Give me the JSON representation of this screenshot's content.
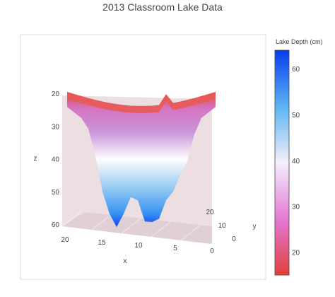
{
  "chart_data": {
    "type": "surface",
    "title": "2013 Classroom Lake Data",
    "xlabel": "x",
    "ylabel": "y",
    "zlabel": "z",
    "x_ticks": [
      "20",
      "15",
      "10",
      "5",
      "0"
    ],
    "y_ticks": [
      "20",
      "10",
      "0"
    ],
    "z_ticks": [
      "20",
      "30",
      "40",
      "50",
      "60"
    ],
    "z_range": [
      15,
      63
    ],
    "z_reversed": true,
    "colorbar": {
      "title": "Lake Depth (cm)",
      "ticks": [
        "60",
        "50",
        "40",
        "30",
        "20"
      ],
      "range": [
        15,
        64
      ],
      "colorscale": [
        [
          0.0,
          "#e0403b"
        ],
        [
          0.25,
          "#e47ad6"
        ],
        [
          0.5,
          "#f4f0fb"
        ],
        [
          0.75,
          "#5ab4f2"
        ],
        [
          1.0,
          "#0a3cf0"
        ]
      ]
    },
    "surface_profile": {
      "x": [
        21,
        20,
        19,
        18,
        17,
        16,
        15,
        14,
        13,
        12,
        11,
        10,
        9,
        8,
        7,
        6,
        5,
        4,
        3,
        2,
        1,
        0
      ],
      "depth": [
        20,
        22,
        24,
        28,
        38,
        50,
        60,
        63,
        60,
        52,
        55,
        61,
        63,
        60,
        55,
        50,
        45,
        40,
        30,
        24,
        22,
        20
      ]
    },
    "floor_grid": true,
    "legend": "colorbar-right"
  }
}
